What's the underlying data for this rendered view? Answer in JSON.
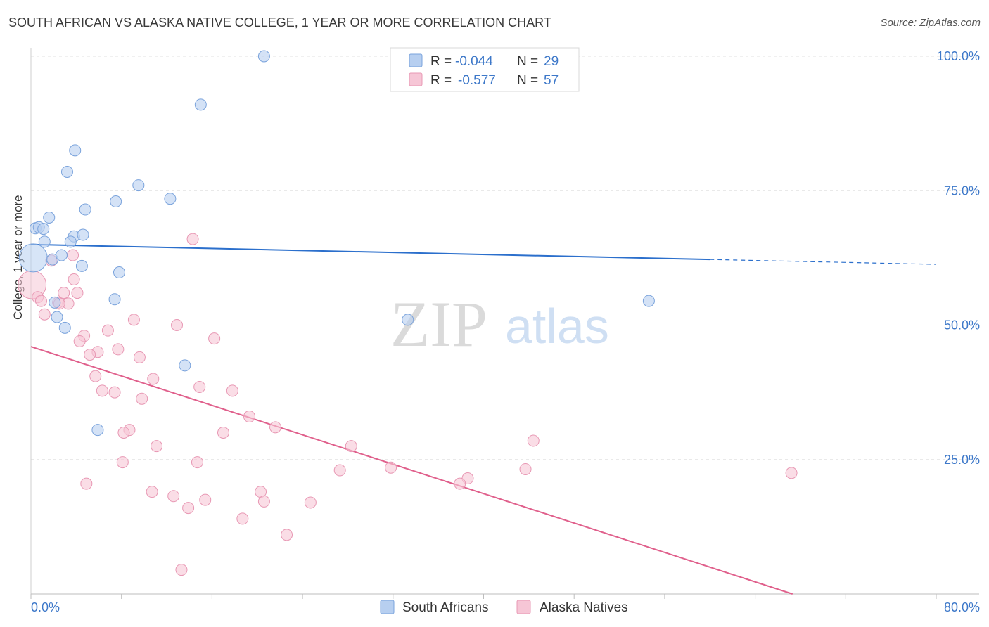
{
  "title": "SOUTH AFRICAN VS ALASKA NATIVE COLLEGE, 1 YEAR OR MORE CORRELATION CHART",
  "source": "Source: ZipAtlas.com",
  "watermark": {
    "zip": "ZIP",
    "atlas": "atlas"
  },
  "colors": {
    "blue_fill": "#b7cff0",
    "blue_stroke": "#7aa3dc",
    "blue_line": "#2b6fcc",
    "pink_fill": "#f6c6d6",
    "pink_stroke": "#e898b4",
    "pink_line": "#e0608c",
    "tick_label": "#3d78c9"
  },
  "legend_top": {
    "rows": [
      {
        "r_label": "R =",
        "r_value": "-0.044",
        "n_label": "N =",
        "n_value": "29"
      },
      {
        "r_label": "R =",
        "r_value": "-0.577",
        "n_label": "N =",
        "n_value": "57"
      }
    ]
  },
  "legend_bottom": [
    "South Africans",
    "Alaska Natives"
  ],
  "chart_data": {
    "type": "scatter",
    "title": "SOUTH AFRICAN VS ALASKA NATIVE COLLEGE, 1 YEAR OR MORE CORRELATION CHART",
    "xlabel": "",
    "ylabel": "College, 1 year or more",
    "xlim": [
      0,
      80
    ],
    "ylim": [
      0,
      100
    ],
    "x_tick_labels": [
      "0.0%",
      "80.0%"
    ],
    "y_ticks": [
      25,
      50,
      75,
      100
    ],
    "y_tick_labels": [
      "25.0%",
      "50.0%",
      "75.0%",
      "100.0%"
    ],
    "grid": true,
    "series": [
      {
        "name": "South Africans",
        "r": -0.044,
        "n": 29,
        "trend": {
          "x0": 0,
          "y0": 65.0,
          "x1": 60,
          "y1": 62.2,
          "dashed_to_x": 80,
          "dashed_to_y": 61.3
        },
        "points": [
          [
            20.6,
            100.0
          ],
          [
            15.0,
            91.0
          ],
          [
            3.9,
            82.5
          ],
          [
            3.2,
            78.5
          ],
          [
            9.5,
            76.0
          ],
          [
            7.5,
            73.0
          ],
          [
            12.3,
            73.5
          ],
          [
            4.8,
            71.5
          ],
          [
            1.6,
            70.0
          ],
          [
            0.4,
            68.0
          ],
          [
            0.7,
            68.2
          ],
          [
            1.2,
            65.5
          ],
          [
            3.8,
            66.5
          ],
          [
            4.6,
            66.8
          ],
          [
            3.5,
            65.5
          ],
          [
            0.2,
            62.5
          ],
          [
            1.9,
            62.2
          ],
          [
            2.7,
            63.0
          ],
          [
            4.5,
            61.0
          ],
          [
            7.8,
            59.8
          ],
          [
            2.1,
            54.2
          ],
          [
            7.4,
            54.8
          ],
          [
            2.3,
            51.5
          ],
          [
            3.0,
            49.5
          ],
          [
            33.3,
            51.0
          ],
          [
            13.6,
            42.5
          ],
          [
            5.9,
            30.5
          ],
          [
            54.6,
            54.5
          ],
          [
            1.1,
            67.9
          ]
        ],
        "sizes": [
          1,
          1,
          1,
          1,
          1,
          1,
          1,
          1,
          1,
          1,
          1,
          1,
          1,
          1,
          1,
          3,
          1,
          1,
          1,
          1,
          1,
          1,
          1,
          1,
          1,
          1,
          1,
          1,
          1
        ]
      },
      {
        "name": "Alaska Natives",
        "r": -0.577,
        "n": 57,
        "trend": {
          "x0": 0,
          "y0": 46.0,
          "x1": 67.3,
          "y1": 0.0
        },
        "points": [
          [
            14.3,
            66.0
          ],
          [
            3.7,
            63.0
          ],
          [
            1.8,
            62.0
          ],
          [
            0.1,
            57.5
          ],
          [
            3.8,
            58.5
          ],
          [
            0.6,
            55.2
          ],
          [
            2.9,
            56.0
          ],
          [
            4.1,
            56.0
          ],
          [
            0.9,
            54.5
          ],
          [
            2.4,
            54.2
          ],
          [
            3.3,
            54.0
          ],
          [
            1.2,
            52.0
          ],
          [
            9.1,
            51.0
          ],
          [
            12.9,
            50.0
          ],
          [
            6.8,
            49.0
          ],
          [
            4.7,
            48.0
          ],
          [
            4.3,
            47.0
          ],
          [
            16.2,
            47.5
          ],
          [
            7.7,
            45.5
          ],
          [
            5.9,
            45.0
          ],
          [
            5.2,
            44.5
          ],
          [
            9.6,
            44.0
          ],
          [
            5.7,
            40.5
          ],
          [
            10.8,
            40.0
          ],
          [
            14.9,
            38.5
          ],
          [
            17.8,
            37.8
          ],
          [
            6.3,
            37.8
          ],
          [
            7.4,
            37.5
          ],
          [
            9.8,
            36.3
          ],
          [
            19.3,
            33.0
          ],
          [
            21.6,
            31.0
          ],
          [
            8.7,
            30.5
          ],
          [
            8.2,
            30.0
          ],
          [
            17.0,
            30.0
          ],
          [
            28.3,
            27.5
          ],
          [
            11.1,
            27.5
          ],
          [
            44.4,
            28.5
          ],
          [
            8.1,
            24.5
          ],
          [
            14.7,
            24.5
          ],
          [
            31.8,
            23.5
          ],
          [
            43.7,
            23.2
          ],
          [
            27.3,
            23.0
          ],
          [
            67.2,
            22.5
          ],
          [
            38.6,
            21.5
          ],
          [
            37.9,
            20.5
          ],
          [
            4.9,
            20.5
          ],
          [
            10.7,
            19.0
          ],
          [
            20.3,
            19.0
          ],
          [
            12.6,
            18.2
          ],
          [
            15.4,
            17.5
          ],
          [
            20.6,
            17.2
          ],
          [
            24.7,
            17.0
          ],
          [
            13.9,
            16.0
          ],
          [
            18.7,
            14.0
          ],
          [
            22.6,
            11.0
          ],
          [
            13.3,
            4.5
          ],
          [
            2.5,
            54.0
          ]
        ],
        "sizes": [
          1,
          1,
          1,
          3,
          1,
          1,
          1,
          1,
          1,
          1,
          1,
          1,
          1,
          1,
          1,
          1,
          1,
          1,
          1,
          1,
          1,
          1,
          1,
          1,
          1,
          1,
          1,
          1,
          1,
          1,
          1,
          1,
          1,
          1,
          1,
          1,
          1,
          1,
          1,
          1,
          1,
          1,
          1,
          1,
          1,
          1,
          1,
          1,
          1,
          1,
          1,
          1,
          1,
          1,
          1,
          1,
          1
        ]
      }
    ]
  }
}
